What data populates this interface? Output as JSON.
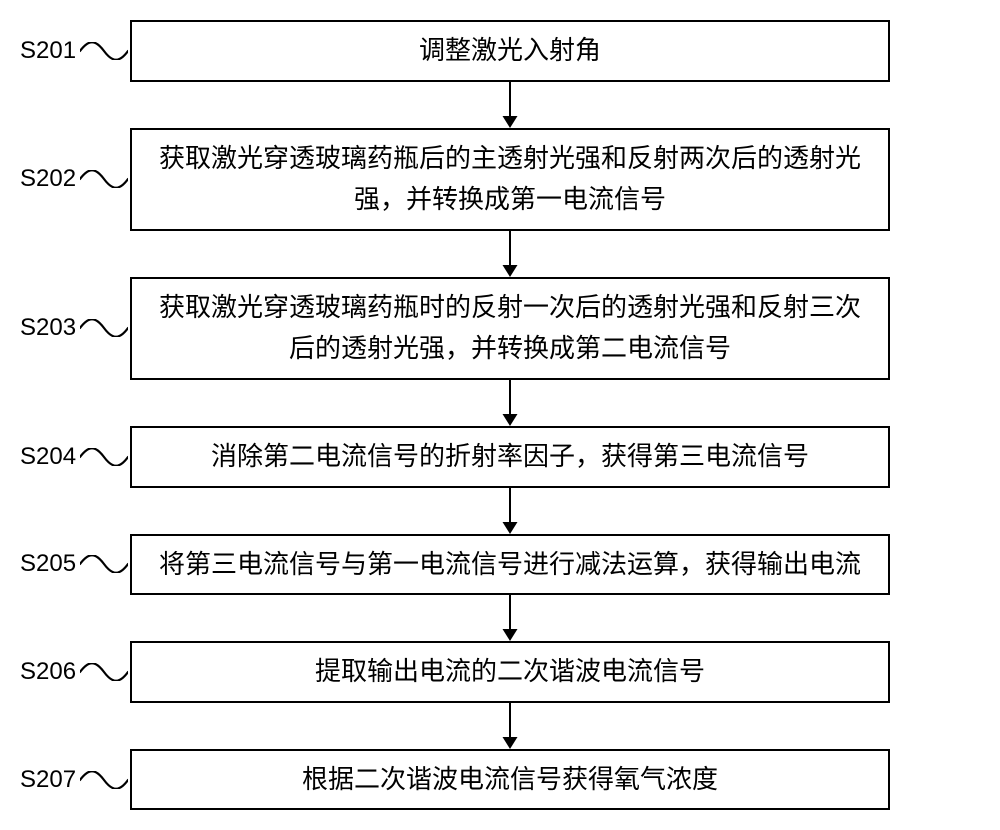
{
  "layout": {
    "containerWidth": 960,
    "labelColWidth": 110,
    "boxWidth": 760,
    "arrowHeight": 46,
    "arrowHeadSize": 12,
    "boxBorderColor": "#000000",
    "boxBorderWidth": 2,
    "backgroundColor": "#ffffff",
    "textColor": "#000000",
    "labelFontSize": 24,
    "boxFontSize": 26,
    "waveWidth": 48,
    "waveHeight": 18,
    "waveStrokeWidth": 2.2
  },
  "steps": [
    {
      "id": "S201",
      "text": "调整激光入射角",
      "minHeight": 50
    },
    {
      "id": "S202",
      "text": "获取激光穿透玻璃药瓶后的主透射光强和反射两次后的透射光强，并转换成第一电流信号",
      "minHeight": 86
    },
    {
      "id": "S203",
      "text": "获取激光穿透玻璃药瓶时的反射一次后的透射光强和反射三次后的透射光强，并转换成第二电流信号",
      "minHeight": 86
    },
    {
      "id": "S204",
      "text": "消除第二电流信号的折射率因子，获得第三电流信号",
      "minHeight": 56
    },
    {
      "id": "S205",
      "text": "将第三电流信号与第一电流信号进行减法运算，获得输出电流",
      "minHeight": 56
    },
    {
      "id": "S206",
      "text": "提取输出电流的二次谐波电流信号",
      "minHeight": 56
    },
    {
      "id": "S207",
      "text": "根据二次谐波电流信号获得氧气浓度",
      "minHeight": 56
    }
  ]
}
